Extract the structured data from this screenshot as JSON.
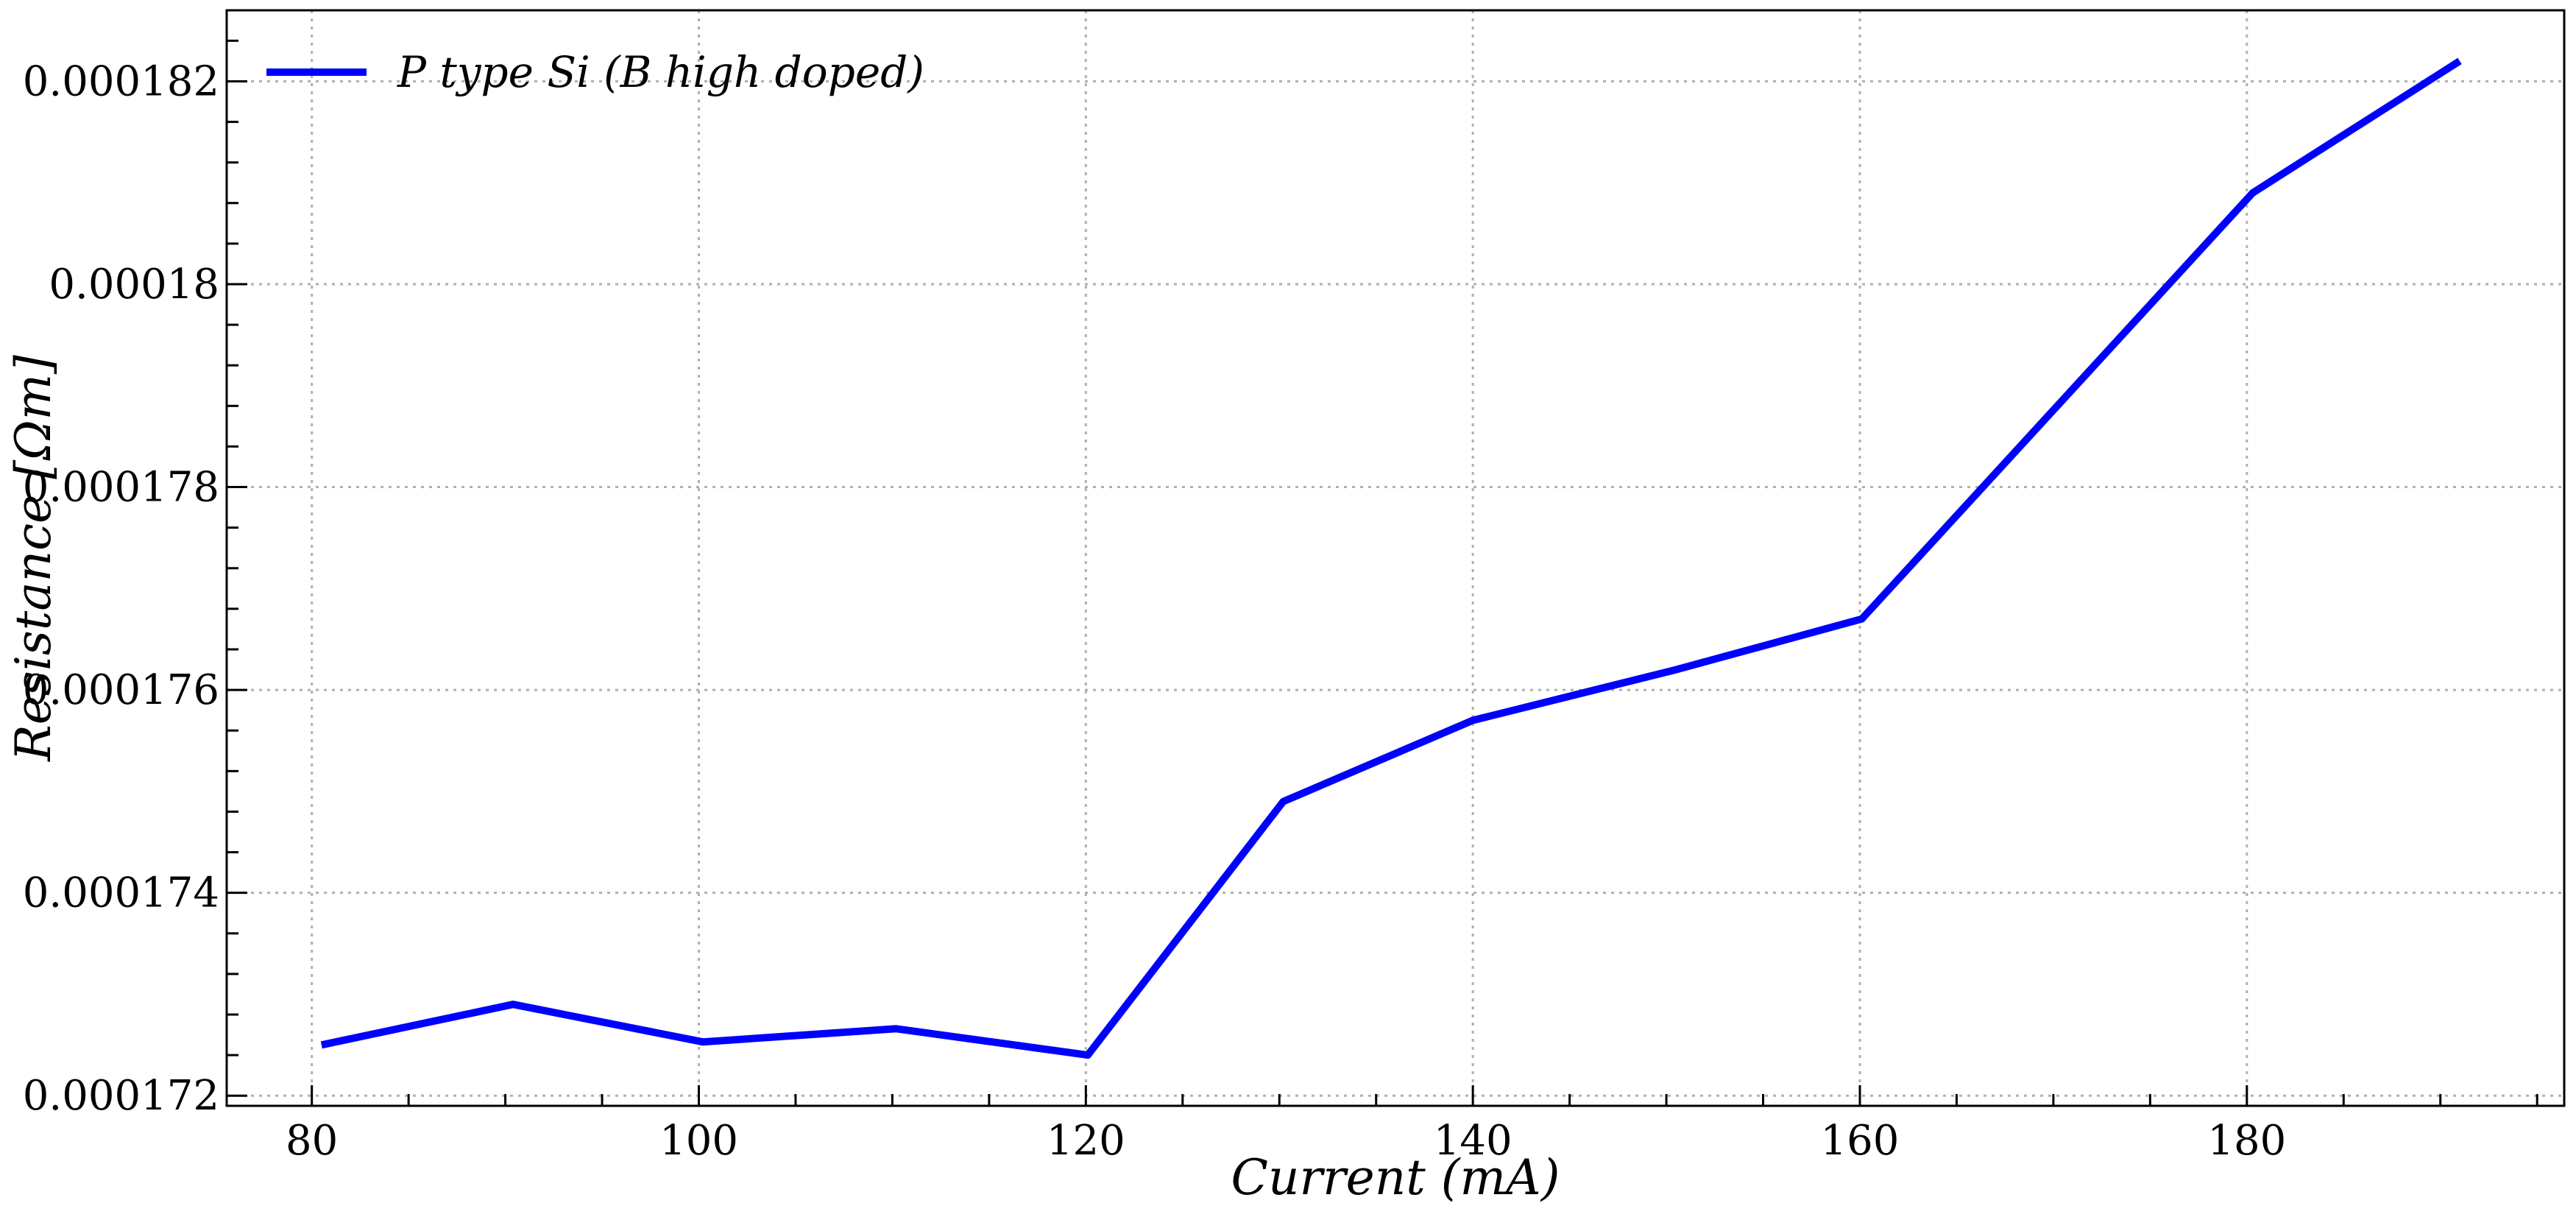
{
  "chart_data": {
    "type": "line",
    "title": "",
    "xlabel": "Current (mA)",
    "ylabel": "Resistance [Ωm]",
    "xlim": [
      75.6,
      196.4
    ],
    "ylim": [
      0.0001719,
      0.0001827
    ],
    "x_ticks": [
      80,
      100,
      120,
      140,
      160,
      180
    ],
    "x_tick_labels": [
      "80",
      "100",
      "120",
      "140",
      "160",
      "180"
    ],
    "y_ticks": [
      0.000172,
      0.000174,
      0.000176,
      0.000178,
      0.00018,
      0.000182
    ],
    "y_tick_labels": [
      "0.000172",
      "0.000174",
      "0.000176",
      "0.000178",
      "0.00018",
      "0.000182"
    ],
    "grid": true,
    "legend_position": "top-left",
    "series": [
      {
        "name": "P type Si (B high doped)",
        "color": "#0000ff",
        "x": [
          80.5,
          90.4,
          100.2,
          110.2,
          120.1,
          130.2,
          140.0,
          150.5,
          160.1,
          180.3,
          191.0
        ],
        "y": [
          0.0001725,
          0.0001729,
          0.00017253,
          0.00017266,
          0.0001724,
          0.0001749,
          0.0001757,
          0.0001762,
          0.0001767,
          0.0001809,
          0.0001822
        ]
      }
    ]
  }
}
